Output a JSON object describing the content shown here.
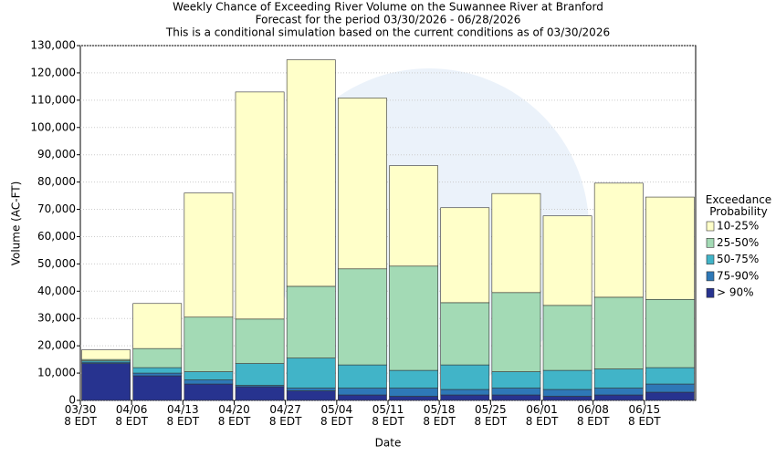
{
  "chart_data": {
    "type": "stacked-bar",
    "title": "Weekly Chance of Exceeding River Volume on the Suwannee River at Branford",
    "subtitle": "Forecast for the period 03/30/2026 - 06/28/2026",
    "note": "This is a conditional simulation based on the current conditions as of 03/30/2026",
    "x_label": "Date",
    "y_label": "Volume (AC-FT)",
    "legend_title": "Exceedance\nProbability",
    "legend": "right",
    "grid": true,
    "categories": [
      "03/30\n8 EDT",
      "04/06\n8 EDT",
      "04/13\n8 EDT",
      "04/20\n8 EDT",
      "04/27\n8 EDT",
      "05/04\n8 EDT",
      "05/11\n8 EDT",
      "05/18\n8 EDT",
      "05/25\n8 EDT",
      "06/01\n8 EDT",
      "06/08\n8 EDT",
      "06/15\n8 EDT"
    ],
    "series": [
      {
        "name": "> 90%",
        "color": "#27338f",
        "values": [
          13500,
          9000,
          6000,
          5000,
          3500,
          2000,
          1500,
          2000,
          2000,
          1500,
          2000,
          3000
        ]
      },
      {
        "name": "75-90%",
        "color": "#2e78b7",
        "values": [
          500,
          1000,
          1500,
          500,
          1000,
          2500,
          3000,
          2000,
          2500,
          2500,
          2500,
          3000
        ]
      },
      {
        "name": "50-75%",
        "color": "#41b4c8",
        "values": [
          500,
          2000,
          3000,
          8000,
          11000,
          8500,
          6500,
          9000,
          6000,
          7000,
          7000,
          6000
        ]
      },
      {
        "name": "25-50%",
        "color": "#a3dab5",
        "values": [
          500,
          7000,
          20000,
          16300,
          26300,
          35200,
          38200,
          22800,
          29000,
          23800,
          26300,
          25000
        ]
      },
      {
        "name": "10-25%",
        "color": "#ffffc9",
        "values": [
          3500,
          16500,
          45500,
          83200,
          83000,
          62600,
          36800,
          34800,
          36300,
          32800,
          41800,
          37500
        ]
      }
    ],
    "ylim": [
      0,
      130000
    ],
    "yticks": [
      0,
      {
        "value": 10000,
        "label": "10,000"
      },
      {
        "value": 20000,
        "label": "20,000"
      },
      {
        "value": 30000,
        "label": "30,000"
      },
      {
        "value": 40000,
        "label": "40,000"
      },
      {
        "value": 50000,
        "label": "50,000"
      },
      {
        "value": 60000,
        "label": "60,000"
      },
      {
        "value": 70000,
        "label": "70,000"
      },
      {
        "value": 80000,
        "label": "80,000"
      },
      {
        "value": 90000,
        "label": "90,000"
      },
      {
        "value": 100000,
        "label": "100,000"
      },
      {
        "value": 110000,
        "label": "110,000"
      },
      {
        "value": 120000,
        "label": "120,000"
      },
      {
        "value": 130000,
        "label": "130,000"
      }
    ]
  }
}
